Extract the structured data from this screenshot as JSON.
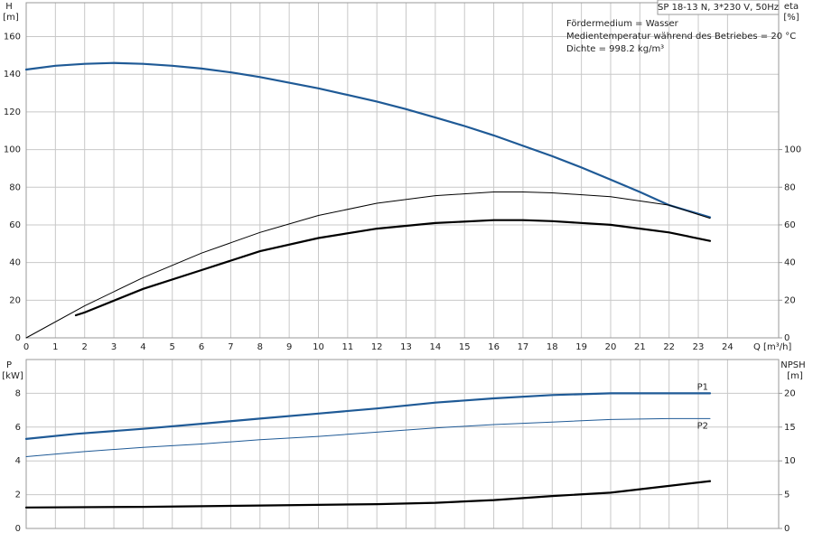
{
  "chart_data": [
    {
      "type": "line",
      "title": "SP 18-13 N, 3*230 V, 50Hz",
      "annotations": [
        "Fördermedium = Wasser",
        "Medientemperatur während des Betriebes = 20 °C",
        "Dichte = 998.2 kg/m³"
      ],
      "ylabel": "H",
      "yunit": "[m]",
      "y2label": "eta",
      "y2unit": "[%]",
      "xlabel": "Q [m³/h]",
      "xlim": [
        0,
        25.75
      ],
      "xticks": [
        0,
        1,
        2,
        3,
        4,
        5,
        6,
        7,
        8,
        9,
        10,
        11,
        12,
        13,
        14,
        15,
        16,
        17,
        18,
        19,
        20,
        21,
        22,
        23,
        24
      ],
      "ylim": [
        0,
        178
      ],
      "yticks": [
        0,
        20,
        40,
        60,
        80,
        100,
        120,
        140,
        160
      ],
      "y2lim": [
        0,
        178
      ],
      "y2ticks": [
        0,
        20,
        40,
        60,
        80,
        100
      ],
      "grid": true,
      "series": [
        {
          "color": "#1f5a96",
          "style": "thick",
          "x": [
            0,
            1,
            2,
            3,
            4,
            5,
            6,
            7,
            8,
            9,
            10,
            11,
            12,
            13,
            14,
            15,
            16,
            17,
            18,
            19,
            20,
            21,
            22,
            23.4
          ],
          "values": [
            142.5,
            144.5,
            145.5,
            146,
            145.5,
            144.5,
            143,
            141,
            138.5,
            135.5,
            132.5,
            129,
            125.5,
            121.5,
            117,
            112.5,
            107.5,
            102,
            96.5,
            90.5,
            84,
            77.5,
            70.5,
            64
          ]
        },
        {
          "color": "#000000",
          "style": "thin",
          "axis": "y2",
          "x": [
            0,
            2,
            4,
            6,
            8,
            10,
            12,
            14,
            16,
            17,
            18,
            20,
            22,
            23.4
          ],
          "values": [
            0,
            17,
            32,
            45,
            56,
            65,
            71.5,
            75.5,
            77.5,
            77.5,
            77,
            75,
            70.5,
            63.5
          ]
        },
        {
          "color": "#000000",
          "style": "thick",
          "axis": "y2",
          "x": [
            1.7,
            2,
            4,
            6,
            8,
            10,
            12,
            14,
            16,
            17,
            18,
            20,
            22,
            23.4
          ],
          "values": [
            12,
            13.5,
            26,
            36,
            46,
            53,
            58,
            61,
            62.5,
            62.5,
            62,
            60,
            56,
            51.5
          ]
        }
      ]
    },
    {
      "type": "line",
      "ylabel": "P",
      "yunit": "[kW]",
      "y2label": "NPSH",
      "y2unit": "[m]",
      "xlim": [
        0,
        25.75
      ],
      "ylim": [
        0,
        10
      ],
      "yticks": [
        0,
        2,
        4,
        6,
        8
      ],
      "y2lim": [
        0,
        25
      ],
      "y2ticks": [
        0,
        5,
        10,
        15,
        20
      ],
      "grid": true,
      "series": [
        {
          "name": "P1",
          "color": "#1f5a96",
          "style": "thick",
          "x": [
            0,
            1.7,
            4,
            6,
            8,
            10,
            12,
            14,
            16,
            18,
            20,
            22,
            23.4
          ],
          "values": [
            5.3,
            5.6,
            5.9,
            6.2,
            6.5,
            6.8,
            7.1,
            7.45,
            7.7,
            7.9,
            8.0,
            8.0,
            8.0
          ]
        },
        {
          "name": "P2",
          "color": "#1f5a96",
          "style": "thin",
          "x": [
            0,
            2,
            4,
            6,
            8,
            10,
            12,
            14,
            16,
            18,
            20,
            22,
            23.4
          ],
          "values": [
            4.25,
            4.55,
            4.8,
            5.0,
            5.25,
            5.45,
            5.7,
            5.95,
            6.15,
            6.3,
            6.45,
            6.5,
            6.5
          ]
        },
        {
          "color": "#000000",
          "style": "thick",
          "axis": "y2",
          "x": [
            0,
            4,
            8,
            12,
            14,
            16,
            18,
            20,
            22,
            23.4
          ],
          "values": [
            3.1,
            3.2,
            3.4,
            3.6,
            3.8,
            4.2,
            4.8,
            5.3,
            6.3,
            7.0
          ]
        }
      ]
    }
  ]
}
